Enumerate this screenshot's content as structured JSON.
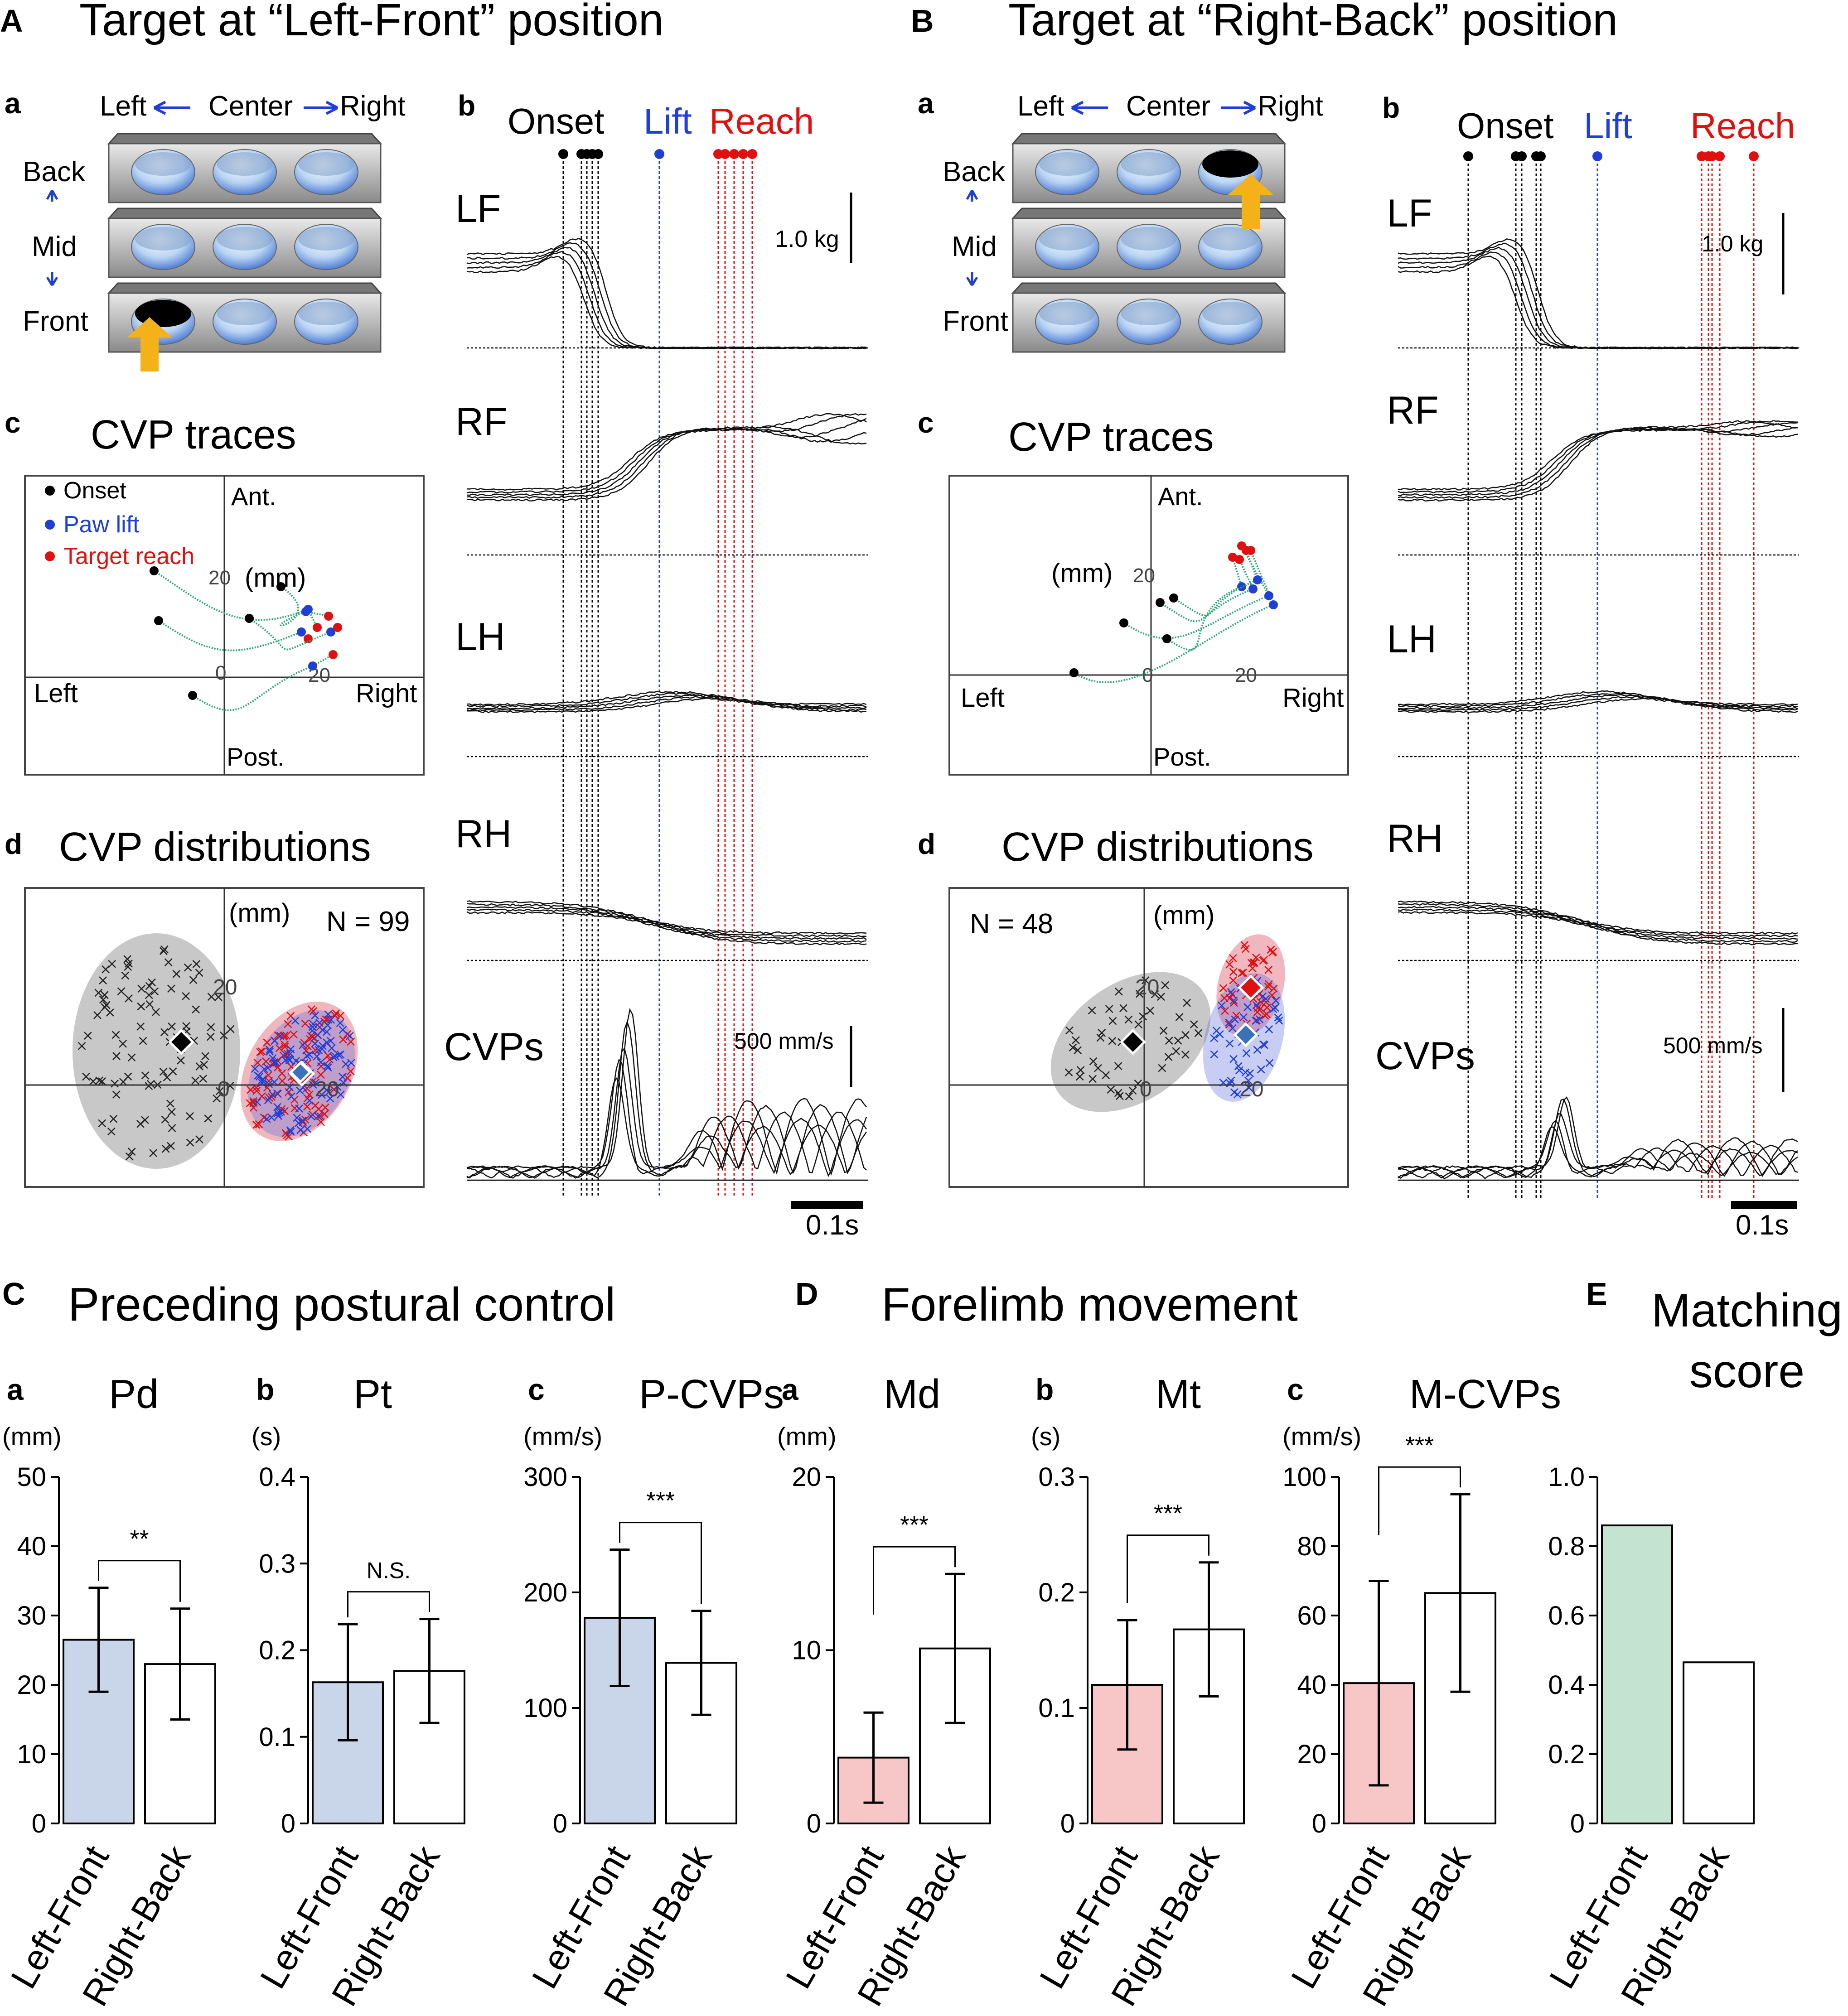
{
  "panelA": {
    "letter": "A",
    "title": "Target at “Left-Front” position",
    "a": {
      "letter": "a",
      "col_left": "Left",
      "col_center": "Center",
      "col_right": "Right",
      "row_back": "Back",
      "row_mid": "Mid",
      "row_front": "Front",
      "target": "Left-Front"
    },
    "b": {
      "letter": "b",
      "onset": "Onset",
      "lift": "Lift",
      "reach": "Reach",
      "traces": [
        "LF",
        "RF",
        "LH",
        "RH",
        "CVPs"
      ],
      "force_scale": "1.0 kg",
      "vel_scale": "500 mm/s",
      "time_scale": "0.1s"
    },
    "c": {
      "letter": "c",
      "title": "CVP traces",
      "legend_onset": "Onset",
      "legend_lift": "Paw lift",
      "legend_reach": "Target reach",
      "ant": "Ant.",
      "post": "Post.",
      "left": "Left",
      "right": "Right",
      "unit": "(mm)",
      "tick_20": "20",
      "tick_0": "0"
    },
    "d": {
      "letter": "d",
      "title": "CVP distributions",
      "unit": "(mm)",
      "n": "N = 99",
      "tick_20": "20",
      "tick_0": "0"
    }
  },
  "panelB": {
    "letter": "B",
    "title": "Target at “Right-Back” position",
    "a": {
      "letter": "a",
      "col_left": "Left",
      "col_center": "Center",
      "col_right": "Right",
      "row_back": "Back",
      "row_mid": "Mid",
      "row_front": "Front",
      "target": "Right-Back"
    },
    "b": {
      "letter": "b",
      "onset": "Onset",
      "lift": "Lift",
      "reach": "Reach",
      "traces": [
        "LF",
        "RF",
        "LH",
        "RH",
        "CVPs"
      ],
      "force_scale": "1.0 kg",
      "vel_scale": "500 mm/s",
      "time_scale": "0.1s"
    },
    "c": {
      "letter": "c",
      "title": "CVP traces",
      "ant": "Ant.",
      "post": "Post.",
      "left": "Left",
      "right": "Right",
      "unit": "(mm)",
      "tick_20": "20",
      "tick_0": "0"
    },
    "d": {
      "letter": "d",
      "title": "CVP distributions",
      "unit": "(mm)",
      "n": "N = 48",
      "tick_20": "20",
      "tick_0": "0"
    }
  },
  "sectionC": {
    "letter": "C",
    "title": "Preceding postural control"
  },
  "sectionD": {
    "letter": "D",
    "title": "Forelimb movement"
  },
  "sectionE": {
    "letter": "E",
    "title_line1": "Matching",
    "title_line2": "score"
  },
  "colors": {
    "left_front_postural": "#c9d6ea",
    "left_front_movement": "#f7c6c6",
    "left_front_matching": "#c4e3d0",
    "right_back": "#ffffff",
    "onset": "#000000",
    "lift": "#1f3fd6",
    "reach": "#e01010",
    "trace": "#2aaa77"
  },
  "chart_data": [
    {
      "id": "Ca",
      "letter": "a",
      "type": "bar",
      "title": "Pd",
      "ylabel": "(mm)",
      "categories": [
        "Left-Front",
        "Right-Back"
      ],
      "values": [
        26.5,
        23
      ],
      "errors": [
        7.5,
        8
      ],
      "ylim": [
        0,
        50
      ],
      "yticks": [
        0,
        10,
        20,
        30,
        40,
        50
      ],
      "yticklabels": [
        "0",
        "10",
        "20",
        "30",
        "40",
        "50"
      ],
      "significance": "**",
      "fill": "postural"
    },
    {
      "id": "Cb",
      "letter": "b",
      "type": "bar",
      "title": "Pt",
      "ylabel": "(s)",
      "categories": [
        "Left-Front",
        "Right-Back"
      ],
      "values": [
        0.163,
        0.176
      ],
      "errors": [
        0.067,
        0.06
      ],
      "ylim": [
        0,
        0.4
      ],
      "yticks": [
        0,
        0.1,
        0.2,
        0.3,
        0.4
      ],
      "yticklabels": [
        "0",
        "0.1",
        "0.2",
        "0.3",
        "0.4"
      ],
      "significance": "N.S.",
      "fill": "postural"
    },
    {
      "id": "Cc",
      "letter": "c",
      "type": "bar",
      "title": "P-CVPs",
      "ylabel": "(mm/s)",
      "categories": [
        "Left-Front",
        "Right-Back"
      ],
      "values": [
        178,
        139
      ],
      "errors": [
        59,
        45
      ],
      "ylim": [
        0,
        300
      ],
      "yticks": [
        0,
        100,
        200,
        300
      ],
      "yticklabels": [
        "0",
        "100",
        "200",
        "300"
      ],
      "significance": "***",
      "fill": "postural"
    },
    {
      "id": "Da",
      "letter": "a",
      "type": "bar",
      "title": "Md",
      "ylabel": "(mm)",
      "categories": [
        "Left-Front",
        "Right-Back"
      ],
      "values": [
        3.8,
        10.1
      ],
      "errors": [
        2.6,
        4.3
      ],
      "ylim": [
        0,
        20
      ],
      "yticks": [
        0,
        10,
        20
      ],
      "yticklabels": [
        "0",
        "10",
        "20"
      ],
      "significance": "***",
      "fill": "movement"
    },
    {
      "id": "Db",
      "letter": "b",
      "type": "bar",
      "title": "Mt",
      "ylabel": "(s)",
      "categories": [
        "Left-Front",
        "Right-Back"
      ],
      "values": [
        0.12,
        0.168
      ],
      "errors": [
        0.056,
        0.058
      ],
      "ylim": [
        0,
        0.3
      ],
      "yticks": [
        0,
        0.1,
        0.2,
        0.3
      ],
      "yticklabels": [
        "0",
        "0.1",
        "0.2",
        "0.3"
      ],
      "significance": "***",
      "fill": "movement"
    },
    {
      "id": "Dc",
      "letter": "c",
      "type": "bar",
      "title": "M-CVPs",
      "ylabel": "(mm/s)",
      "categories": [
        "Left-Front",
        "Right-Back"
      ],
      "values": [
        40.5,
        66.5
      ],
      "errors": [
        29.5,
        28.5
      ],
      "ylim": [
        0,
        100
      ],
      "yticks": [
        0,
        20,
        40,
        60,
        80,
        100
      ],
      "yticklabels": [
        "0",
        "20",
        "40",
        "60",
        "80",
        "100"
      ],
      "significance": "***",
      "fill": "movement"
    },
    {
      "id": "E",
      "letter": "",
      "type": "bar",
      "title": "",
      "ylabel": "",
      "categories": [
        "Left-Front",
        "Right-Back"
      ],
      "values": [
        0.86,
        0.465
      ],
      "errors": null,
      "ylim": [
        0,
        1.0
      ],
      "yticks": [
        0,
        0.2,
        0.4,
        0.6,
        0.8,
        1.0
      ],
      "yticklabels": [
        "0",
        "0.2",
        "0.4",
        "0.6",
        "0.8",
        "1.0"
      ],
      "significance": "",
      "fill": "matching"
    }
  ]
}
